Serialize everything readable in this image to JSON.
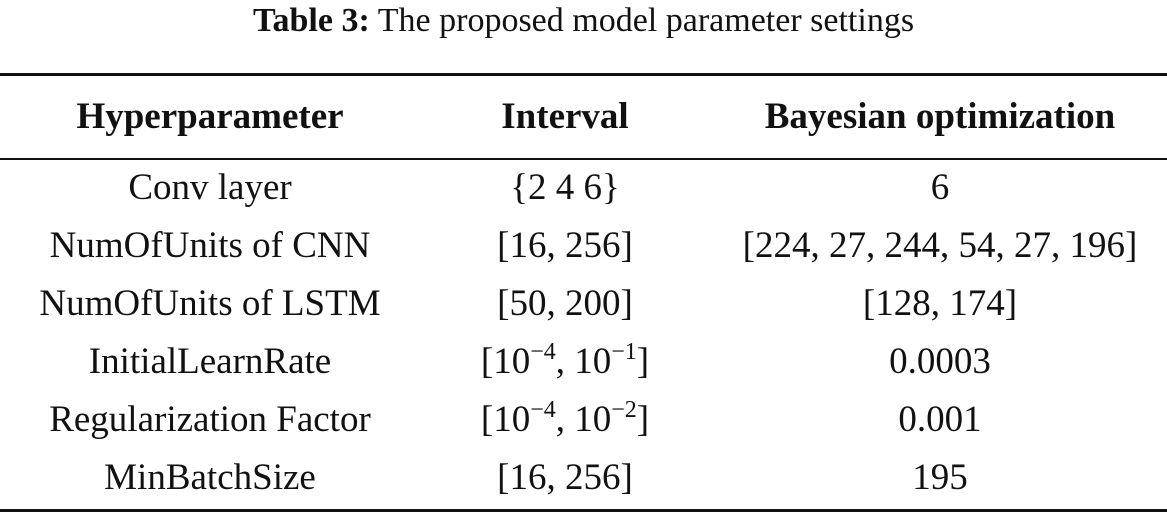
{
  "caption": {
    "label": "Table 3:",
    "text": "The proposed model parameter settings"
  },
  "table": {
    "header": [
      "Hyperparameter",
      "Interval",
      "Bayesian optimization"
    ],
    "rows": [
      [
        "Conv layer",
        "{2 4 6}",
        "6"
      ],
      [
        "NumOfUnits of CNN",
        "[16, 256]",
        "[224, 27, 244, 54, 27, 196]"
      ],
      [
        "NumOfUnits of LSTM",
        "[50, 200]",
        "[128, 174]"
      ],
      [
        "InitialLearnRate",
        [
          {
            "text": "[10"
          },
          {
            "sup": "−4"
          },
          {
            "text": ", 10"
          },
          {
            "sup": "−1"
          },
          {
            "text": "]"
          }
        ],
        "0.0003"
      ],
      [
        "Regularization Factor",
        [
          {
            "text": "[10"
          },
          {
            "sup": "−4"
          },
          {
            "text": ", 10"
          },
          {
            "sup": "−2"
          },
          {
            "text": "]"
          }
        ],
        "0.001"
      ],
      [
        "MinBatchSize",
        "[16, 256]",
        "195"
      ]
    ]
  }
}
